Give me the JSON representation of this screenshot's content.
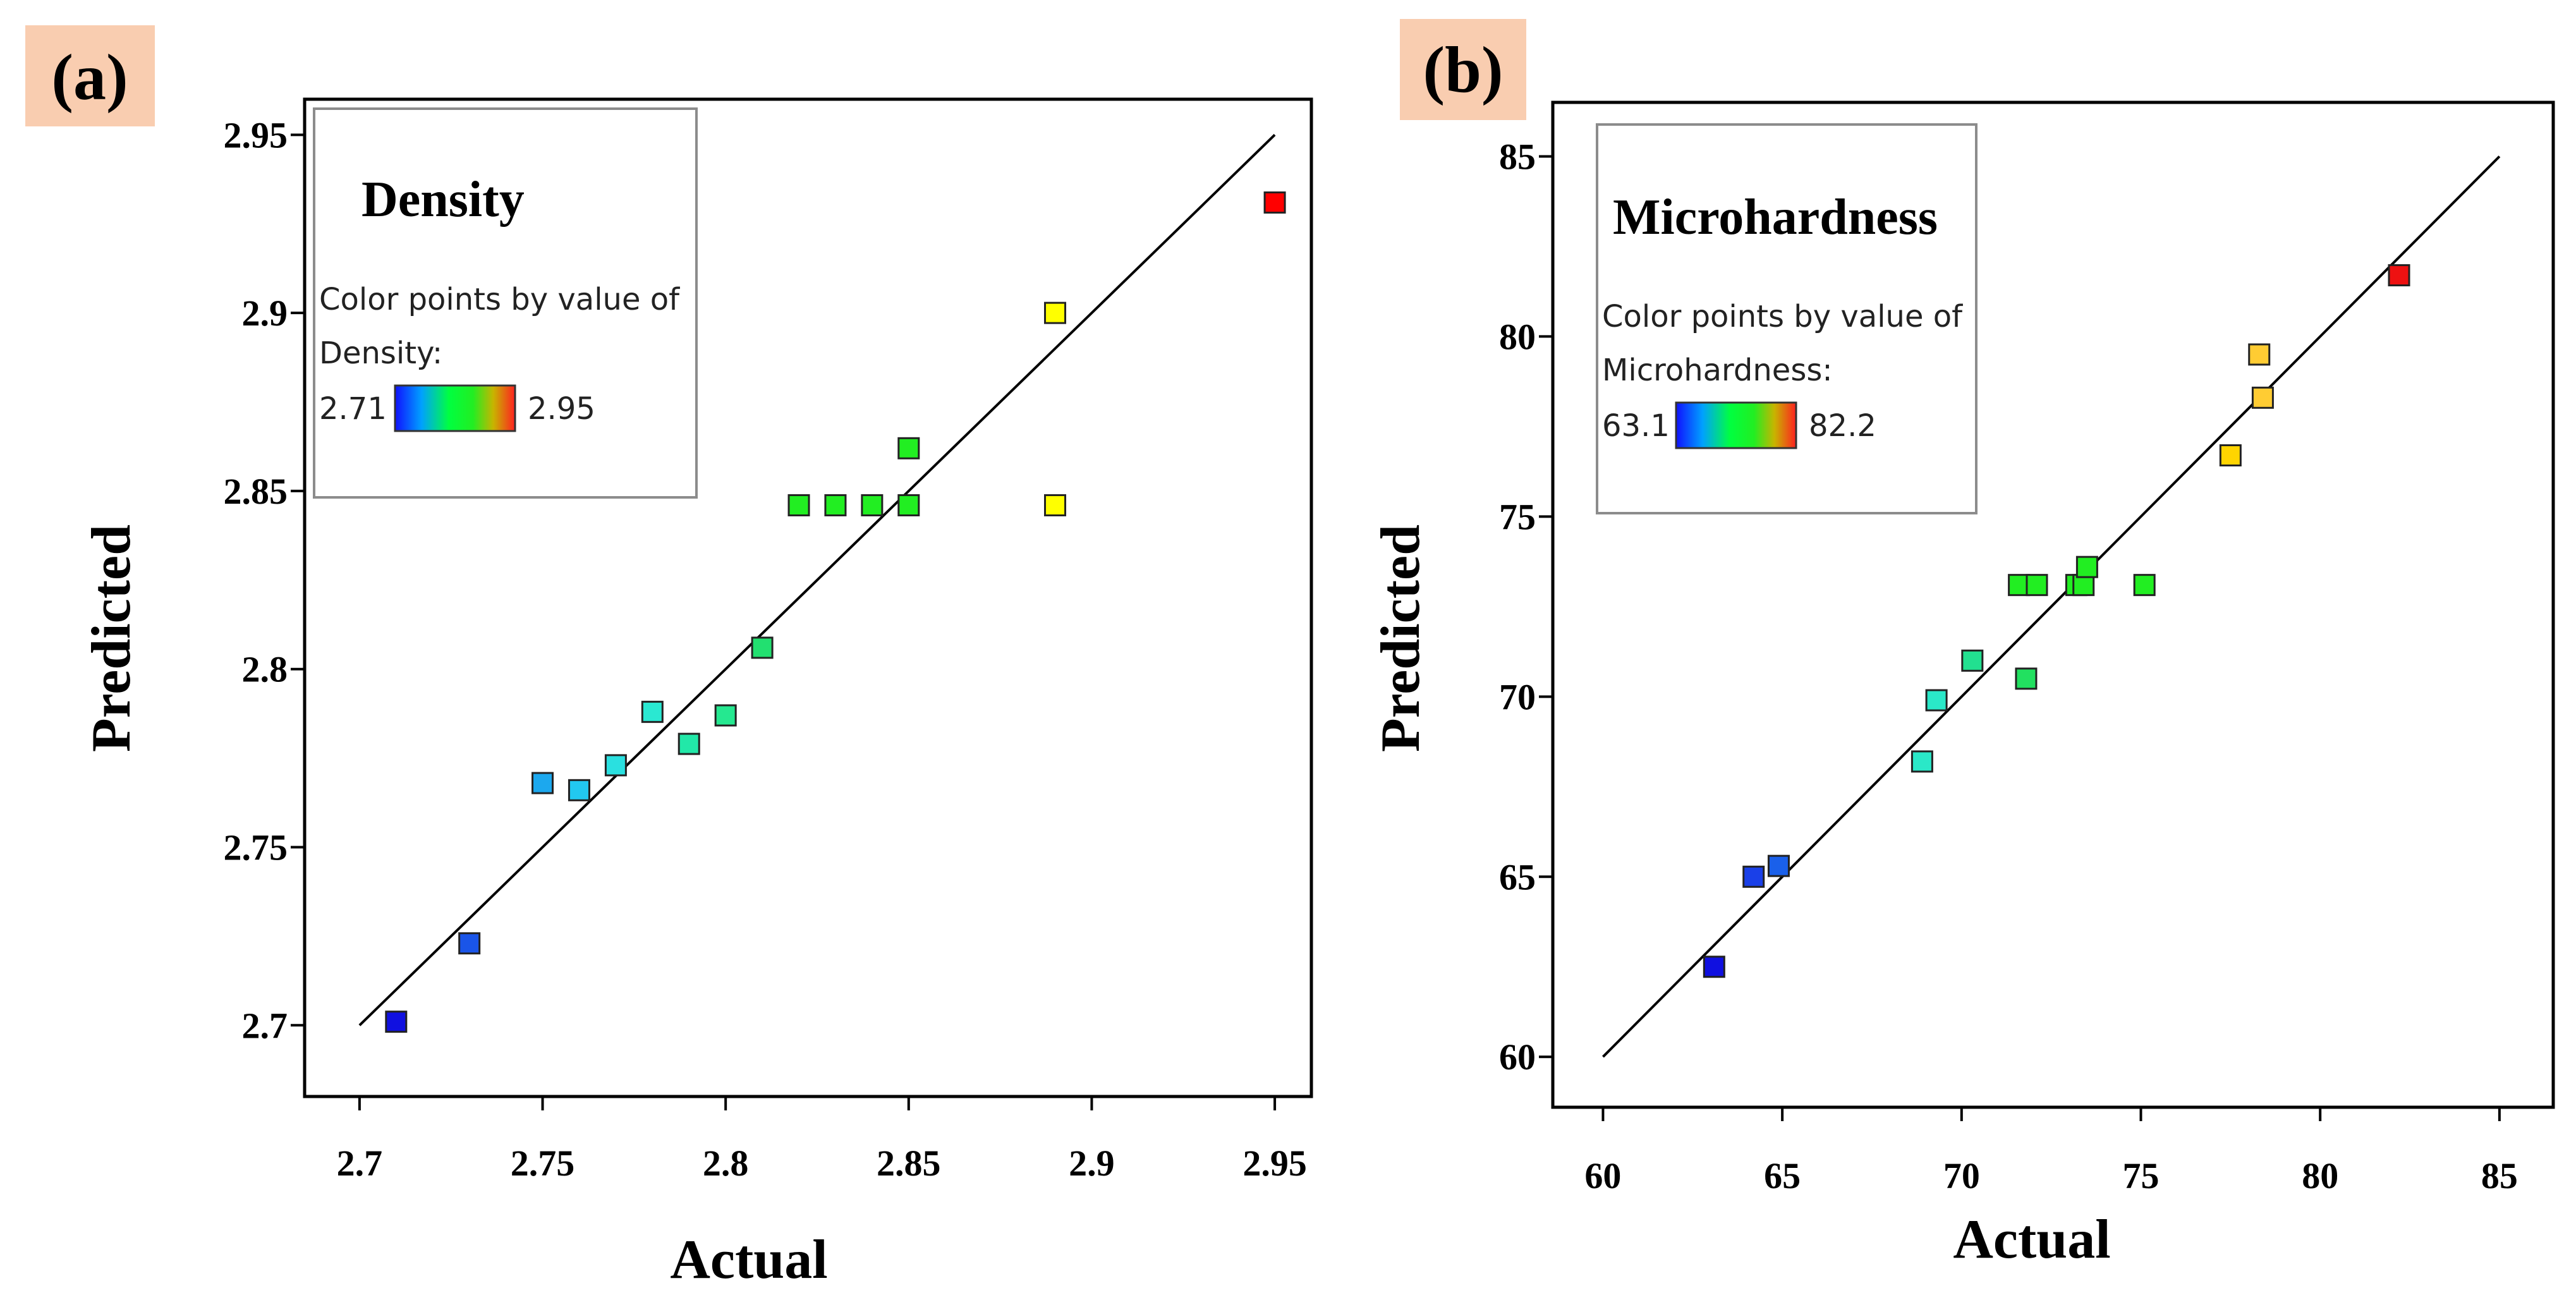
{
  "chart_data": [
    {
      "type": "scatter",
      "panel_label": "(a)",
      "legend": {
        "title": "Density",
        "caption_line1": "Color points by value of",
        "caption_line2": "Density:",
        "min_label": "2.71",
        "max_label": "2.95",
        "placement": "top-left"
      },
      "xlabel": "Actual",
      "ylabel": "Predicted",
      "xlim": [
        2.685,
        2.96
      ],
      "ylim": [
        2.68,
        2.96
      ],
      "xticks": [
        2.7,
        2.75,
        2.8,
        2.85,
        2.9,
        2.95
      ],
      "xtick_labels": [
        "2.7",
        "2.75",
        "2.8",
        "2.85",
        "2.9",
        "2.95"
      ],
      "yticks": [
        2.7,
        2.75,
        2.8,
        2.85,
        2.9,
        2.95
      ],
      "ytick_labels": [
        "2.7",
        "2.75",
        "2.8",
        "2.85",
        "2.9",
        "2.95"
      ],
      "reference_line": [
        [
          2.7,
          2.7
        ],
        [
          2.95,
          2.95
        ]
      ],
      "grid": false,
      "points": [
        {
          "x": 2.71,
          "y": 2.701,
          "color": "#1010e0"
        },
        {
          "x": 2.73,
          "y": 2.723,
          "color": "#1a55e8"
        },
        {
          "x": 2.75,
          "y": 2.768,
          "color": "#1ca8ee"
        },
        {
          "x": 2.76,
          "y": 2.766,
          "color": "#22c8f0"
        },
        {
          "x": 2.77,
          "y": 2.773,
          "color": "#2ae0e0"
        },
        {
          "x": 2.78,
          "y": 2.788,
          "color": "#2ae8d2"
        },
        {
          "x": 2.79,
          "y": 2.779,
          "color": "#22e8a8"
        },
        {
          "x": 2.8,
          "y": 2.787,
          "color": "#25e890"
        },
        {
          "x": 2.81,
          "y": 2.806,
          "color": "#22e070"
        },
        {
          "x": 2.82,
          "y": 2.846,
          "color": "#22ee22"
        },
        {
          "x": 2.83,
          "y": 2.846,
          "color": "#22ee22"
        },
        {
          "x": 2.84,
          "y": 2.846,
          "color": "#22ee22"
        },
        {
          "x": 2.85,
          "y": 2.846,
          "color": "#22ee22"
        },
        {
          "x": 2.85,
          "y": 2.862,
          "color": "#22ee22"
        },
        {
          "x": 2.89,
          "y": 2.9,
          "color": "#ffff00"
        },
        {
          "x": 2.89,
          "y": 2.846,
          "color": "#ffff00"
        },
        {
          "x": 2.95,
          "y": 2.931,
          "color": "#ff0000"
        }
      ]
    },
    {
      "type": "scatter",
      "panel_label": "(b)",
      "legend": {
        "title": "Microhardness",
        "caption_line1": "Color points by value of",
        "caption_line2": "Microhardness:",
        "min_label": "63.1",
        "max_label": "82.2",
        "placement": "top-left"
      },
      "xlabel": "Actual",
      "ylabel": "Predicted",
      "xlim": [
        58.6,
        86.5
      ],
      "ylim": [
        58.6,
        86.5
      ],
      "xticks": [
        60,
        65,
        70,
        75,
        80,
        85
      ],
      "xtick_labels": [
        "60",
        "65",
        "70",
        "75",
        "80",
        "85"
      ],
      "yticks": [
        60,
        65,
        70,
        75,
        80,
        85
      ],
      "ytick_labels": [
        "60",
        "65",
        "70",
        "75",
        "80",
        "85"
      ],
      "reference_line": [
        [
          60,
          60
        ],
        [
          85,
          85
        ]
      ],
      "grid": false,
      "points": [
        {
          "x": 63.1,
          "y": 62.5,
          "color": "#1010e0"
        },
        {
          "x": 64.2,
          "y": 65.0,
          "color": "#1a40e8"
        },
        {
          "x": 64.9,
          "y": 65.3,
          "color": "#1a60ea"
        },
        {
          "x": 68.9,
          "y": 68.2,
          "color": "#2ae8c8"
        },
        {
          "x": 69.3,
          "y": 69.9,
          "color": "#2ae8c8"
        },
        {
          "x": 70.3,
          "y": 71.0,
          "color": "#22e090"
        },
        {
          "x": 71.6,
          "y": 73.1,
          "color": "#22ee22"
        },
        {
          "x": 71.8,
          "y": 70.5,
          "color": "#22e060"
        },
        {
          "x": 72.1,
          "y": 73.1,
          "color": "#22ee22"
        },
        {
          "x": 73.2,
          "y": 73.1,
          "color": "#22ee22"
        },
        {
          "x": 73.4,
          "y": 73.1,
          "color": "#22ee22"
        },
        {
          "x": 73.5,
          "y": 73.6,
          "color": "#22ee22"
        },
        {
          "x": 75.1,
          "y": 73.1,
          "color": "#22ee22"
        },
        {
          "x": 77.5,
          "y": 76.7,
          "color": "#ffd400"
        },
        {
          "x": 78.3,
          "y": 79.5,
          "color": "#ffcc33"
        },
        {
          "x": 78.4,
          "y": 78.3,
          "color": "#ffcc33"
        },
        {
          "x": 82.2,
          "y": 81.7,
          "color": "#ee1111"
        }
      ]
    }
  ],
  "colors": {
    "panel_label_bg": "#f9cdb0",
    "colorbar_stops": [
      "#1010ff",
      "#00a0ff",
      "#00ff40",
      "#22ee22",
      "#c8b400",
      "#ff2020"
    ]
  }
}
